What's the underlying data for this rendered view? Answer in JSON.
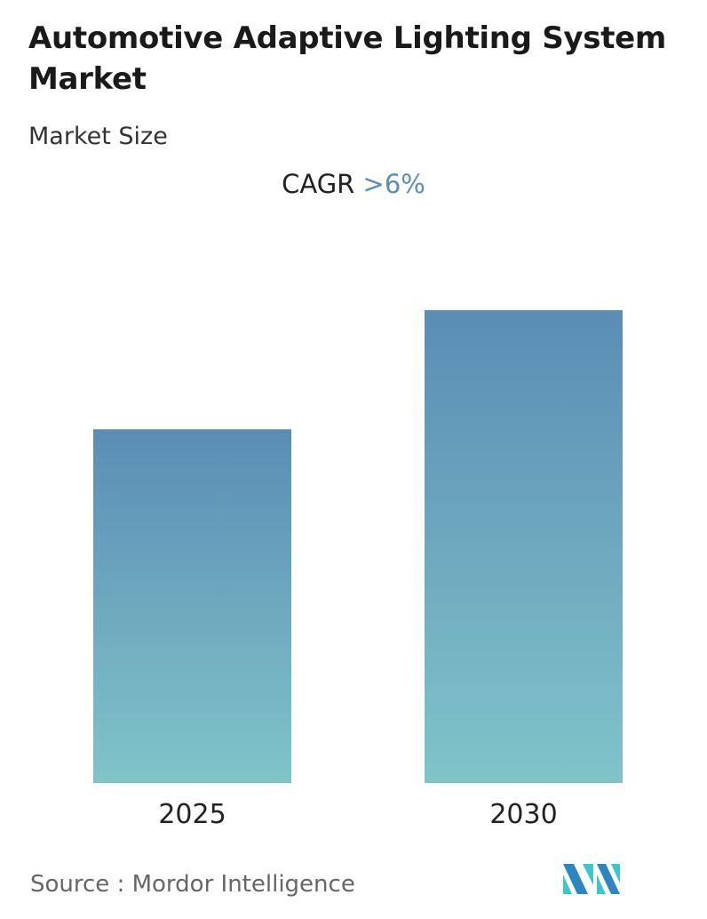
{
  "title": "Automotive Adaptive Lighting System Market",
  "subtitle": "Market Size",
  "cagr": {
    "label": "CAGR",
    "value": ">6%"
  },
  "source": {
    "label": "Source :",
    "name": "Mordor Intelligence"
  },
  "logo": {
    "icon": "mordor-intelligence-logo",
    "text": "Mordor Intelligence"
  },
  "colors": {
    "bar_top": "#5b8db5",
    "bar_bottom": "#80c4c9",
    "cagr_value": "#5b8db5",
    "logo_dark": "#2e86c1",
    "logo_light": "#3ec6c9"
  },
  "chart_data": {
    "type": "bar",
    "categories": [
      "2025",
      "2030"
    ],
    "values": [
      74.8,
      100
    ],
    "value_note": "relative bar heights; no values printed",
    "grid": false,
    "legend": "none"
  }
}
